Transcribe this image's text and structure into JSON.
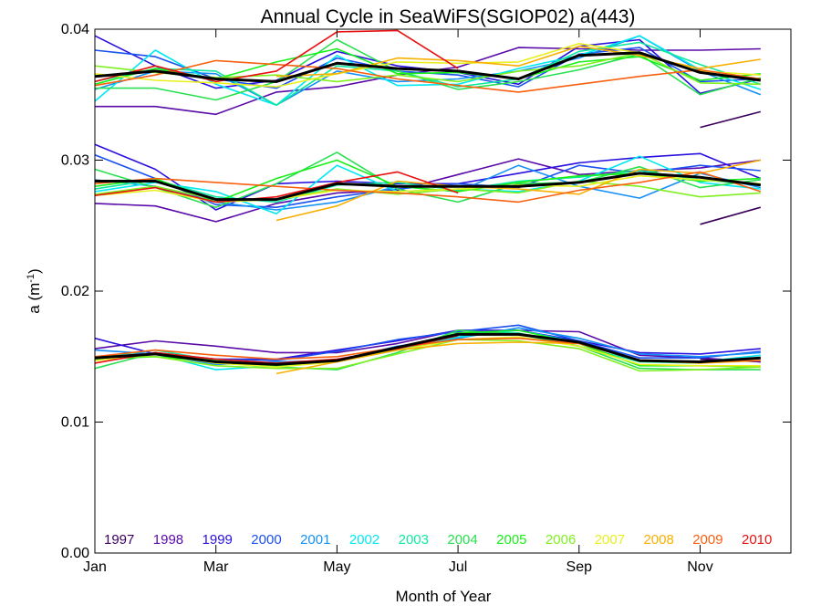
{
  "chart_data": {
    "type": "line",
    "title": "Annual Cycle in SeaWiFS(SGIOP02) a(443)",
    "xlabel": "Month of Year",
    "ylabel_main": "a (m",
    "ylabel_sup": "-1",
    "ylabel_close": ")",
    "xlim": [
      1,
      12.5
    ],
    "ylim": [
      0,
      0.04
    ],
    "x_ticks": [
      {
        "x": 1,
        "label": "Jan"
      },
      {
        "x": 3,
        "label": "Mar"
      },
      {
        "x": 5,
        "label": "May"
      },
      {
        "x": 7,
        "label": "Jul"
      },
      {
        "x": 9,
        "label": "Sep"
      },
      {
        "x": 11,
        "label": "Nov"
      }
    ],
    "y_ticks": [
      {
        "y": 0,
        "label": "0.00"
      },
      {
        "y": 0.01,
        "label": "0.01"
      },
      {
        "y": 0.02,
        "label": "0.02"
      },
      {
        "y": 0.03,
        "label": "0.03"
      },
      {
        "y": 0.04,
        "label": "0.04"
      }
    ],
    "months": [
      1,
      2,
      3,
      4,
      5,
      6,
      7,
      8,
      9,
      10,
      11,
      12
    ],
    "grid": false,
    "legend_position": "bottom",
    "series": [
      {
        "name": "1997",
        "color": "#3a005a",
        "groups": [
          [
            null,
            null,
            null,
            null,
            null,
            null,
            null,
            null,
            null,
            null,
            0.0325,
            0.0337
          ],
          [
            null,
            null,
            null,
            null,
            null,
            null,
            null,
            null,
            null,
            null,
            0.0251,
            0.0264
          ],
          [
            null,
            null,
            null,
            null,
            null,
            null,
            null,
            null,
            null,
            null,
            0.0148,
            0.0146
          ]
        ]
      },
      {
        "name": "1998",
        "color": "#5a0aa8",
        "groups": [
          [
            0.0341,
            0.0341,
            0.0335,
            0.0352,
            0.0356,
            0.0365,
            0.0371,
            0.0386,
            0.0385,
            0.0384,
            0.0384,
            0.0385
          ],
          [
            0.0267,
            0.0265,
            0.0253,
            0.0267,
            0.0275,
            0.0277,
            0.0289,
            0.0301,
            0.0289,
            0.0292,
            0.0294,
            0.03
          ],
          [
            0.0156,
            0.0162,
            0.0158,
            0.0153,
            0.0153,
            0.016,
            0.017,
            0.017,
            0.0169,
            0.0151,
            0.0149,
            0.0146
          ]
        ]
      },
      {
        "name": "1999",
        "color": "#2a10e0",
        "groups": [
          [
            0.0395,
            0.0372,
            0.0355,
            0.0361,
            0.0383,
            0.0372,
            0.0367,
            0.0358,
            0.0387,
            0.0392,
            0.0351,
            0.0362
          ],
          [
            0.0312,
            0.0293,
            0.0262,
            0.0282,
            0.0284,
            0.0282,
            0.0282,
            0.029,
            0.0298,
            0.0302,
            0.0305,
            0.0286
          ],
          [
            0.0164,
            0.0152,
            0.0148,
            0.0148,
            0.0155,
            0.0162,
            0.017,
            0.017,
            0.0162,
            0.0153,
            0.0152,
            0.0156
          ]
        ]
      },
      {
        "name": "2000",
        "color": "#1a50f0",
        "groups": [
          [
            0.0384,
            0.0379,
            0.0362,
            0.0355,
            0.0378,
            0.0368,
            0.0365,
            0.0356,
            0.0381,
            0.0386,
            0.036,
            0.0362
          ],
          [
            0.0304,
            0.0286,
            0.0266,
            0.0264,
            0.0272,
            0.0278,
            0.0282,
            0.0279,
            0.0296,
            0.029,
            0.0296,
            0.0292
          ],
          [
            0.0149,
            0.0153,
            0.0148,
            0.0147,
            0.0154,
            0.0163,
            0.0169,
            0.0174,
            0.0162,
            0.0149,
            0.0149,
            0.0154
          ]
        ]
      },
      {
        "name": "2001",
        "color": "#1590f5",
        "groups": [
          [
            0.0354,
            0.0368,
            0.0366,
            0.0342,
            0.0368,
            0.036,
            0.0362,
            0.0368,
            0.0378,
            0.0395,
            0.0368,
            0.035
          ],
          [
            0.0285,
            0.028,
            0.0268,
            0.0262,
            0.0268,
            0.028,
            0.0276,
            0.0296,
            0.028,
            0.0271,
            0.029,
            0.0279
          ],
          [
            0.0155,
            0.0152,
            0.0144,
            0.0146,
            0.0147,
            0.0158,
            0.0164,
            0.0172,
            0.0164,
            0.0152,
            0.015,
            0.0153
          ]
        ]
      },
      {
        "name": "2002",
        "color": "#00e8f0",
        "groups": [
          [
            0.0345,
            0.0384,
            0.0358,
            0.0342,
            0.038,
            0.0357,
            0.0358,
            0.037,
            0.038,
            0.0395,
            0.0369,
            0.0354
          ],
          [
            0.0276,
            0.0283,
            0.0276,
            0.0259,
            0.0296,
            0.0276,
            0.0278,
            0.0276,
            0.0284,
            0.0303,
            0.0283,
            0.0278
          ],
          [
            0.0148,
            0.0152,
            0.014,
            0.0143,
            0.0146,
            0.0155,
            0.0165,
            0.017,
            0.0161,
            0.0147,
            0.0146,
            0.0151
          ]
        ]
      },
      {
        "name": "2003",
        "color": "#10e8a0",
        "groups": [
          [
            0.036,
            0.037,
            0.0368,
            0.0342,
            0.0372,
            0.0368,
            0.0356,
            0.0362,
            0.0383,
            0.039,
            0.0373,
            0.0358
          ],
          [
            0.0278,
            0.0285,
            0.0272,
            0.0268,
            0.0281,
            0.0283,
            0.0277,
            0.0284,
            0.0287,
            0.0292,
            0.0285,
            0.0281
          ],
          [
            0.0149,
            0.0155,
            0.0147,
            0.0144,
            0.0147,
            0.0156,
            0.0168,
            0.0168,
            0.0158,
            0.0146,
            0.0145,
            0.0149
          ]
        ]
      },
      {
        "name": "2004",
        "color": "#28e050",
        "groups": [
          [
            0.0355,
            0.0355,
            0.0346,
            0.036,
            0.0392,
            0.0368,
            0.0354,
            0.036,
            0.0369,
            0.0381,
            0.035,
            0.0363
          ],
          [
            0.0293,
            0.0279,
            0.0264,
            0.0282,
            0.0306,
            0.0278,
            0.0268,
            0.0282,
            0.0283,
            0.0295,
            0.0279,
            0.0285
          ],
          [
            0.0141,
            0.0153,
            0.0147,
            0.0142,
            0.014,
            0.0153,
            0.017,
            0.0167,
            0.0158,
            0.0141,
            0.014,
            0.014
          ]
        ]
      },
      {
        "name": "2005",
        "color": "#18f018",
        "groups": [
          [
            0.0358,
            0.037,
            0.0362,
            0.0375,
            0.0385,
            0.0366,
            0.0367,
            0.0362,
            0.0375,
            0.0379,
            0.0361,
            0.0366
          ],
          [
            0.028,
            0.0286,
            0.0268,
            0.0286,
            0.03,
            0.028,
            0.0276,
            0.0283,
            0.0288,
            0.029,
            0.0284,
            0.0286
          ],
          [
            0.0148,
            0.015,
            0.0146,
            0.0143,
            0.0146,
            0.0156,
            0.0168,
            0.017,
            0.016,
            0.0143,
            0.0143,
            0.0142
          ]
        ]
      },
      {
        "name": "2006",
        "color": "#80f020",
        "groups": [
          [
            0.0372,
            0.0367,
            0.0363,
            0.0365,
            0.036,
            0.0365,
            0.036,
            0.0368,
            0.0372,
            0.0382,
            0.0359,
            0.0358
          ],
          [
            0.0274,
            0.028,
            0.027,
            0.027,
            0.0278,
            0.0274,
            0.0278,
            0.0275,
            0.0284,
            0.028,
            0.0272,
            0.0275
          ],
          [
            0.015,
            0.015,
            0.0143,
            0.0141,
            0.0141,
            0.0152,
            0.0163,
            0.0162,
            0.0156,
            0.0139,
            0.014,
            0.0142
          ]
        ]
      },
      {
        "name": "2007",
        "color": "#e8f020",
        "groups": [
          [
            0.0366,
            0.0361,
            0.0359,
            0.0356,
            0.0366,
            0.0375,
            0.0374,
            0.0375,
            0.0389,
            0.0382,
            0.0368,
            0.0365
          ],
          [
            0.0273,
            0.0277,
            0.0268,
            0.027,
            0.0277,
            0.0276,
            0.0278,
            0.0281,
            0.028,
            0.0288,
            0.0285,
            0.0282
          ],
          [
            0.0147,
            0.0152,
            0.0145,
            0.0142,
            0.0146,
            0.0155,
            0.0163,
            0.0165,
            0.0158,
            0.0144,
            0.0143,
            0.0143
          ]
        ]
      },
      {
        "name": "2008",
        "color": "#f8b000",
        "groups": [
          [
            null,
            null,
            null,
            0.0364,
            0.0366,
            0.0378,
            0.0376,
            0.0372,
            0.0387,
            0.038,
            0.037,
            0.0377
          ],
          [
            null,
            null,
            null,
            0.0254,
            0.0265,
            0.0284,
            0.028,
            0.0278,
            0.0274,
            0.0293,
            0.029,
            0.03
          ],
          [
            null,
            null,
            null,
            0.0137,
            0.0146,
            0.0155,
            0.016,
            0.0161,
            0.016,
            0.0147,
            0.0145,
            0.0147
          ]
        ]
      },
      {
        "name": "2009",
        "color": "#f86010",
        "groups": [
          [
            0.0357,
            0.0365,
            0.0376,
            0.0373,
            0.037,
            0.0362,
            0.0357,
            0.0352,
            0.0358,
            0.0364,
            0.0369,
            0.0362
          ],
          [
            0.0282,
            0.0286,
            0.0283,
            0.028,
            0.0277,
            0.0275,
            0.0272,
            0.0268,
            0.0277,
            0.0283,
            0.0291,
            0.0276
          ],
          [
            0.015,
            0.0155,
            0.0151,
            0.0148,
            0.015,
            0.0157,
            0.0163,
            0.0164,
            0.016,
            0.0147,
            0.0146,
            0.0147
          ]
        ]
      },
      {
        "name": "2010",
        "color": "#e81010",
        "groups": [
          [
            0.036,
            0.0372,
            0.036,
            0.0368,
            0.0398,
            0.0399,
            0.037,
            null,
            null,
            null,
            null,
            null
          ],
          [
            0.0273,
            0.0279,
            0.0268,
            0.0272,
            0.0283,
            0.0291,
            0.0275,
            null,
            null,
            null,
            null,
            null
          ],
          [
            0.0145,
            0.0153,
            0.0148,
            0.0145,
            0.0148,
            0.0156,
            0.0166,
            null,
            null,
            null,
            null,
            null
          ]
        ]
      },
      {
        "name": "",
        "color": "#000000",
        "groups": [
          [
            0.0364,
            0.0368,
            0.0362,
            0.036,
            0.0374,
            0.037,
            0.0368,
            0.0362,
            0.038,
            0.0382,
            0.0367,
            0.0361
          ],
          [
            0.0284,
            0.0284,
            0.027,
            0.027,
            0.0282,
            0.028,
            0.028,
            0.028,
            0.0283,
            0.029,
            0.0287,
            0.0281
          ],
          [
            0.0149,
            0.0152,
            0.0146,
            0.0144,
            0.0147,
            0.0157,
            0.0167,
            0.0167,
            0.0161,
            0.0147,
            0.0146,
            0.0149
          ]
        ]
      }
    ]
  }
}
